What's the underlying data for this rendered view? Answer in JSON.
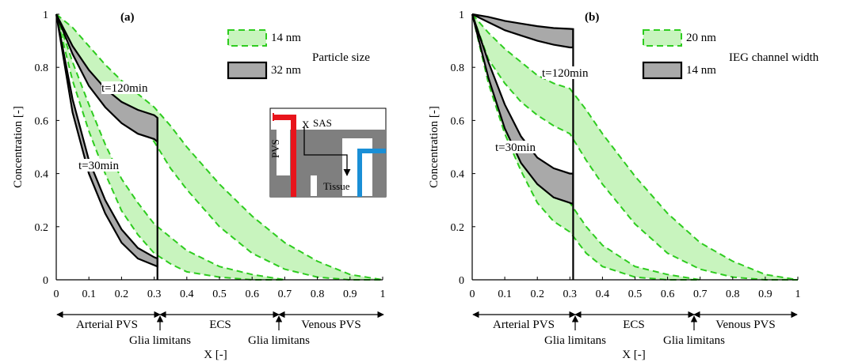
{
  "colors": {
    "green_fill": "#b6f0a8",
    "green_line": "#2ecc1f",
    "gray_fill": "#a9a9a9",
    "artery": "#e8141b",
    "vein": "#1a8fd6",
    "tissue": "#7f7f7f"
  },
  "chart_data": [
    {
      "type": "area",
      "panel": "(a)",
      "xlabel": "X [-]",
      "ylabel": "Concentration [-]",
      "xlim": [
        0,
        1
      ],
      "ylim": [
        0,
        1
      ],
      "xticks": [
        "0",
        "0.1",
        "0.2",
        "0.3",
        "0.4",
        "0.5",
        "0.6",
        "0.7",
        "0.8",
        "0.9",
        "1"
      ],
      "yticks": [
        "0",
        "0.2",
        "0.4",
        "0.6",
        "0.8",
        "1"
      ],
      "legend_title": "Particle size",
      "legend": [
        "14 nm",
        "32 nm"
      ],
      "annotations": [
        "t=120min",
        "t=30min"
      ],
      "regions": [
        "Arterial PVS",
        "ECS",
        "Venous PVS"
      ],
      "boundaries": [
        "Glia limitans",
        "Glia limitans"
      ],
      "inset": {
        "labels": [
          "SAS",
          "PVS",
          "Tissue",
          "X"
        ]
      },
      "series": [
        {
          "name": "14 nm",
          "time": "t=120min",
          "x": [
            0,
            0.05,
            0.1,
            0.15,
            0.2,
            0.25,
            0.3,
            0.35,
            0.4,
            0.5,
            0.6,
            0.7,
            0.8,
            0.9,
            1
          ],
          "upper": [
            1,
            0.95,
            0.88,
            0.81,
            0.75,
            0.7,
            0.65,
            0.58,
            0.5,
            0.36,
            0.24,
            0.14,
            0.07,
            0.02,
            0
          ],
          "lower": [
            1,
            0.88,
            0.79,
            0.71,
            0.64,
            0.58,
            0.52,
            0.42,
            0.34,
            0.2,
            0.1,
            0.04,
            0.01,
            0,
            0
          ]
        },
        {
          "name": "14 nm",
          "time": "t=30min",
          "x": [
            0,
            0.05,
            0.1,
            0.15,
            0.2,
            0.25,
            0.3,
            0.35,
            0.4,
            0.5,
            0.6,
            0.7
          ],
          "upper": [
            1,
            0.82,
            0.66,
            0.51,
            0.38,
            0.29,
            0.21,
            0.16,
            0.11,
            0.05,
            0.02,
            0
          ],
          "lower": [
            1,
            0.75,
            0.56,
            0.4,
            0.26,
            0.17,
            0.1,
            0.06,
            0.03,
            0.01,
            0,
            0
          ]
        },
        {
          "name": "32 nm",
          "time": "t=120min",
          "x": [
            0,
            0.05,
            0.1,
            0.15,
            0.2,
            0.25,
            0.3,
            0.31
          ],
          "upper": [
            1,
            0.88,
            0.79,
            0.72,
            0.67,
            0.64,
            0.62,
            0.61
          ],
          "lower": [
            1,
            0.85,
            0.73,
            0.65,
            0.59,
            0.55,
            0.53,
            0.52
          ]
        },
        {
          "name": "32 nm",
          "time": "t=30min",
          "x": [
            0,
            0.05,
            0.1,
            0.15,
            0.2,
            0.25,
            0.3,
            0.31
          ],
          "upper": [
            1,
            0.68,
            0.45,
            0.3,
            0.19,
            0.12,
            0.085,
            0.08
          ],
          "lower": [
            1,
            0.63,
            0.4,
            0.25,
            0.14,
            0.08,
            0.055,
            0.05
          ]
        }
      ]
    },
    {
      "type": "area",
      "panel": "(b)",
      "xlabel": "X [-]",
      "ylabel": "Concentration [-]",
      "xlim": [
        0,
        1
      ],
      "ylim": [
        0,
        1
      ],
      "xticks": [
        "0",
        "0.1",
        "0.2",
        "0.3",
        "0.4",
        "0.5",
        "0.6",
        "0.7",
        "0.8",
        "0.9",
        "1"
      ],
      "yticks": [
        "0",
        "0.2",
        "0.4",
        "0.6",
        "0.8",
        "1"
      ],
      "legend_title": "IEG channel width",
      "legend": [
        "20 nm",
        "14 nm"
      ],
      "annotations": [
        "t=120min",
        "t=30min"
      ],
      "regions": [
        "Arterial PVS",
        "ECS",
        "Venous PVS"
      ],
      "boundaries": [
        "Glia limitans",
        "Glia limitans"
      ],
      "series": [
        {
          "name": "20 nm",
          "time": "t=120min",
          "x": [
            0,
            0.05,
            0.1,
            0.15,
            0.2,
            0.25,
            0.3,
            0.35,
            0.4,
            0.5,
            0.6,
            0.7,
            0.8,
            0.9,
            1
          ],
          "upper": [
            1,
            0.93,
            0.87,
            0.82,
            0.77,
            0.74,
            0.72,
            0.64,
            0.55,
            0.39,
            0.25,
            0.14,
            0.07,
            0.02,
            0
          ],
          "lower": [
            1,
            0.83,
            0.74,
            0.67,
            0.62,
            0.58,
            0.55,
            0.45,
            0.36,
            0.21,
            0.1,
            0.04,
            0.01,
            0,
            0
          ]
        },
        {
          "name": "20 nm",
          "time": "t=30min",
          "x": [
            0,
            0.05,
            0.1,
            0.15,
            0.2,
            0.25,
            0.3,
            0.35,
            0.4,
            0.5,
            0.6,
            0.7
          ],
          "upper": [
            1,
            0.8,
            0.64,
            0.5,
            0.38,
            0.32,
            0.29,
            0.2,
            0.13,
            0.05,
            0.02,
            0
          ],
          "lower": [
            1,
            0.74,
            0.55,
            0.41,
            0.29,
            0.22,
            0.18,
            0.1,
            0.05,
            0.01,
            0,
            0
          ]
        },
        {
          "name": "14 nm",
          "time": "t=120min",
          "x": [
            0,
            0.05,
            0.1,
            0.15,
            0.2,
            0.25,
            0.3,
            0.31
          ],
          "upper": [
            1,
            0.99,
            0.975,
            0.965,
            0.955,
            0.948,
            0.945,
            0.944
          ],
          "lower": [
            1,
            0.97,
            0.94,
            0.92,
            0.9,
            0.885,
            0.875,
            0.875
          ]
        },
        {
          "name": "14 nm",
          "time": "t=30min",
          "x": [
            0,
            0.05,
            0.1,
            0.15,
            0.2,
            0.25,
            0.3,
            0.31
          ],
          "upper": [
            1,
            0.82,
            0.66,
            0.54,
            0.46,
            0.42,
            0.4,
            0.4
          ],
          "lower": [
            1,
            0.76,
            0.57,
            0.44,
            0.36,
            0.31,
            0.29,
            0.285
          ]
        }
      ]
    }
  ]
}
